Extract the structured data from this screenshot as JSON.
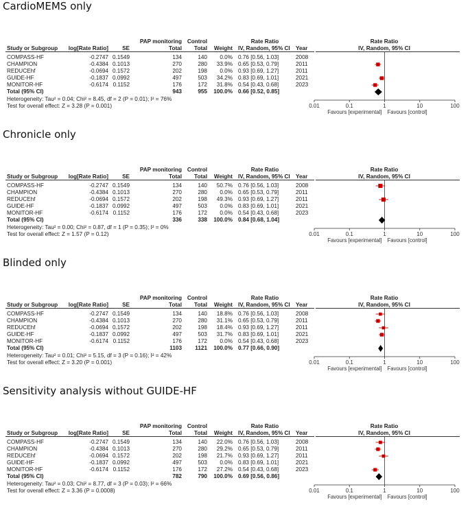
{
  "columns": {
    "study": "Study or Subgroup",
    "lograte": "log[Rate Ratio]",
    "se": "SE",
    "pap": "PAP monitoring",
    "control": "Control",
    "total": "Total",
    "weight": "Weight",
    "rr_top": "Rate Ratio",
    "rr_method": "IV, Random, 95% CI",
    "year": "Year",
    "plot_top": "Rate Ratio",
    "plot_method": "IV, Random, 95% CI"
  },
  "axis": {
    "ticks": [
      "0.01",
      "0.1",
      "1",
      "10",
      "100"
    ],
    "favours_left": "Favours [experimental]",
    "favours_right": "Favours [control]"
  },
  "colors": {
    "square": "#c00000",
    "diamond": "#000000",
    "line": "#333333"
  },
  "chart_data": [
    {
      "type": "forest",
      "title": "CardioMEMS only",
      "x_scale": "log",
      "xlim": [
        0.01,
        100
      ],
      "rows": [
        {
          "study": "COMPASS-HF",
          "lograte": "-0.2747",
          "se": "0.1549",
          "pap": "134",
          "control": "140",
          "weight": "0.0%",
          "ci_text": "0.76 [0.56, 1.03]",
          "year": "2008",
          "rr": 0.76,
          "lo": 0.56,
          "hi": 1.03,
          "w": 0.0
        },
        {
          "study": "CHAMPION",
          "lograte": "-0.4384",
          "se": "0.1013",
          "pap": "270",
          "control": "280",
          "weight": "33.9%",
          "ci_text": "0.65 [0.53, 0.79]",
          "year": "2011",
          "rr": 0.65,
          "lo": 0.53,
          "hi": 0.79,
          "w": 33.9
        },
        {
          "study": "REDUCEhf",
          "lograte": "-0.0694",
          "se": "0.1572",
          "pap": "202",
          "control": "198",
          "weight": "0.0%",
          "ci_text": "0.93 [0.69, 1.27]",
          "year": "2011",
          "rr": 0.93,
          "lo": 0.69,
          "hi": 1.27,
          "w": 0.0
        },
        {
          "study": "GUIDE-HF",
          "lograte": "-0.1837",
          "se": "0.0992",
          "pap": "497",
          "control": "503",
          "weight": "34.2%",
          "ci_text": "0.83 [0.69, 1.01]",
          "year": "2021",
          "rr": 0.83,
          "lo": 0.69,
          "hi": 1.01,
          "w": 34.2
        },
        {
          "study": "MONITOR-HF",
          "lograte": "-0.6174",
          "se": "0.1152",
          "pap": "176",
          "control": "172",
          "weight": "31.8%",
          "ci_text": "0.54 [0.43, 0.68]",
          "year": "2023",
          "rr": 0.54,
          "lo": 0.43,
          "hi": 0.68,
          "w": 31.8
        }
      ],
      "total": {
        "label": "Total (95% CI)",
        "pap": "943",
        "control": "955",
        "weight": "100.0%",
        "ci_text": "0.66 [0.52, 0.85]",
        "rr": 0.66,
        "lo": 0.52,
        "hi": 0.85
      },
      "heterogeneity": "Heterogeneity: Tau² = 0.04; Chi² = 8.45, df = 2 (P = 0.01); I² = 76%",
      "overall": "Test for overall effect: Z = 3.28 (P = 0.001)"
    },
    {
      "type": "forest",
      "title": "Chronicle only",
      "x_scale": "log",
      "xlim": [
        0.01,
        100
      ],
      "rows": [
        {
          "study": "COMPASS-HF",
          "lograte": "-0.2747",
          "se": "0.1549",
          "pap": "134",
          "control": "140",
          "weight": "50.7%",
          "ci_text": "0.76 [0.56, 1.03]",
          "year": "2008",
          "rr": 0.76,
          "lo": 0.56,
          "hi": 1.03,
          "w": 50.7
        },
        {
          "study": "CHAMPION",
          "lograte": "-0.4384",
          "se": "0.1013",
          "pap": "270",
          "control": "280",
          "weight": "0.0%",
          "ci_text": "0.65 [0.53, 0.79]",
          "year": "2011",
          "rr": 0.65,
          "lo": 0.53,
          "hi": 0.79,
          "w": 0.0
        },
        {
          "study": "REDUCEhf",
          "lograte": "-0.0694",
          "se": "0.1572",
          "pap": "202",
          "control": "198",
          "weight": "49.3%",
          "ci_text": "0.93 [0.69, 1.27]",
          "year": "2011",
          "rr": 0.93,
          "lo": 0.69,
          "hi": 1.27,
          "w": 49.3
        },
        {
          "study": "GUIDE-HF",
          "lograte": "-0.1837",
          "se": "0.0992",
          "pap": "497",
          "control": "503",
          "weight": "0.0%",
          "ci_text": "0.83 [0.69, 1.01]",
          "year": "2021",
          "rr": 0.83,
          "lo": 0.69,
          "hi": 1.01,
          "w": 0.0
        },
        {
          "study": "MONITOR-HF",
          "lograte": "-0.6174",
          "se": "0.1152",
          "pap": "176",
          "control": "172",
          "weight": "0.0%",
          "ci_text": "0.54 [0.43, 0.68]",
          "year": "2023",
          "rr": 0.54,
          "lo": 0.43,
          "hi": 0.68,
          "w": 0.0
        }
      ],
      "total": {
        "label": "Total (95% CI)",
        "pap": "336",
        "control": "338",
        "weight": "100.0%",
        "ci_text": "0.84 [0.68, 1.04]",
        "rr": 0.84,
        "lo": 0.68,
        "hi": 1.04
      },
      "heterogeneity": "Heterogeneity: Tau² = 0.00; Chi² = 0.87, df = 1 (P = 0.35); I² = 0%",
      "overall": "Test for overall effect: Z = 1.57 (P = 0.12)"
    },
    {
      "type": "forest",
      "title": "Blinded only",
      "x_scale": "log",
      "xlim": [
        0.01,
        100
      ],
      "rows": [
        {
          "study": "COMPASS-HF",
          "lograte": "-0.2747",
          "se": "0.1549",
          "pap": "134",
          "control": "140",
          "weight": "18.8%",
          "ci_text": "0.76 [0.56, 1.03]",
          "year": "2008",
          "rr": 0.76,
          "lo": 0.56,
          "hi": 1.03,
          "w": 18.8
        },
        {
          "study": "CHAMPION",
          "lograte": "-0.4384",
          "se": "0.1013",
          "pap": "270",
          "control": "280",
          "weight": "31.1%",
          "ci_text": "0.65 [0.53, 0.79]",
          "year": "2011",
          "rr": 0.65,
          "lo": 0.53,
          "hi": 0.79,
          "w": 31.1
        },
        {
          "study": "REDUCEhf",
          "lograte": "-0.0694",
          "se": "0.1572",
          "pap": "202",
          "control": "198",
          "weight": "18.4%",
          "ci_text": "0.93 [0.69, 1.27]",
          "year": "2011",
          "rr": 0.93,
          "lo": 0.69,
          "hi": 1.27,
          "w": 18.4
        },
        {
          "study": "GUIDE-HF",
          "lograte": "-0.1837",
          "se": "0.0992",
          "pap": "497",
          "control": "503",
          "weight": "31.7%",
          "ci_text": "0.83 [0.69, 1.01]",
          "year": "2021",
          "rr": 0.83,
          "lo": 0.69,
          "hi": 1.01,
          "w": 31.7
        },
        {
          "study": "MONITOR-HF",
          "lograte": "-0.6174",
          "se": "0.1152",
          "pap": "176",
          "control": "172",
          "weight": "0.0%",
          "ci_text": "0.54 [0.43, 0.68]",
          "year": "2023",
          "rr": 0.54,
          "lo": 0.43,
          "hi": 0.68,
          "w": 0.0
        }
      ],
      "total": {
        "label": "Total (95% CI)",
        "pap": "1103",
        "control": "1121",
        "weight": "100.0%",
        "ci_text": "0.77 [0.66, 0.90]",
        "rr": 0.77,
        "lo": 0.66,
        "hi": 0.9
      },
      "heterogeneity": "Heterogeneity: Tau² = 0.01; Chi² = 5.15, df = 3 (P = 0.16); I² = 42%",
      "overall": "Test for overall effect: Z = 3.20 (P = 0.001)"
    },
    {
      "type": "forest",
      "title": "Sensitivity analysis without GUIDE-HF",
      "x_scale": "log",
      "xlim": [
        0.01,
        100
      ],
      "rows": [
        {
          "study": "COMPASS-HF",
          "lograte": "-0.2747",
          "se": "0.1549",
          "pap": "134",
          "control": "140",
          "weight": "22.0%",
          "ci_text": "0.76 [0.56, 1.03]",
          "year": "2008",
          "rr": 0.76,
          "lo": 0.56,
          "hi": 1.03,
          "w": 22.0
        },
        {
          "study": "CHAMPION",
          "lograte": "-0.4384",
          "se": "0.1013",
          "pap": "270",
          "control": "280",
          "weight": "29.2%",
          "ci_text": "0.65 [0.53, 0.79]",
          "year": "2011",
          "rr": 0.65,
          "lo": 0.53,
          "hi": 0.79,
          "w": 29.2
        },
        {
          "study": "REDUCEhf",
          "lograte": "-0.0694",
          "se": "0.1572",
          "pap": "202",
          "control": "198",
          "weight": "21.7%",
          "ci_text": "0.93 [0.69, 1.27]",
          "year": "2011",
          "rr": 0.93,
          "lo": 0.69,
          "hi": 1.27,
          "w": 21.7
        },
        {
          "study": "GUIDE-HF",
          "lograte": "-0.1837",
          "se": "0.0992",
          "pap": "497",
          "control": "503",
          "weight": "0.0%",
          "ci_text": "0.83 [0.69, 1.01]",
          "year": "2021",
          "rr": 0.83,
          "lo": 0.69,
          "hi": 1.01,
          "w": 0.0
        },
        {
          "study": "MONITOR-HF",
          "lograte": "-0.6174",
          "se": "0.1152",
          "pap": "176",
          "control": "172",
          "weight": "27.2%",
          "ci_text": "0.54 [0.43, 0.68]",
          "year": "2023",
          "rr": 0.54,
          "lo": 0.43,
          "hi": 0.68,
          "w": 27.2
        }
      ],
      "total": {
        "label": "Total (95% CI)",
        "pap": "782",
        "control": "790",
        "weight": "100.0%",
        "ci_text": "0.69 [0.56, 0.86]",
        "rr": 0.69,
        "lo": 0.56,
        "hi": 0.86
      },
      "heterogeneity": "Heterogeneity: Tau² = 0.03; Chi² = 8.77, df = 3 (P = 0.03); I² = 66%",
      "overall": "Test for overall effect: Z = 3.36 (P = 0.0008)"
    }
  ]
}
